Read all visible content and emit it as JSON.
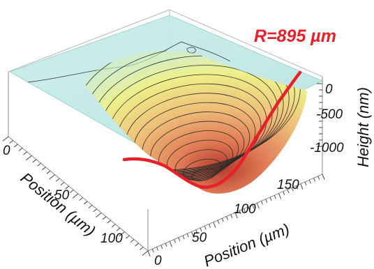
{
  "chart_data": {
    "type": "surface3d",
    "title": "",
    "annotation": "R=895 µm",
    "x_axis": {
      "label": "Position (µm)",
      "ticks": [
        0,
        50,
        100
      ]
    },
    "y_axis": {
      "label": "Position (µm)",
      "ticks": [
        0,
        50,
        100,
        150
      ]
    },
    "z_axis": {
      "label": "Height (nm)",
      "ticks": [
        0,
        -500,
        -1000
      ]
    },
    "surface": {
      "description_values": {
        "rim_height_nm": 0,
        "min_height_nm": -1150,
        "min_location_um": {
          "x": 95,
          "y": 75
        },
        "contour_interval_nm": 60
      }
    },
    "fit_profile": {
      "name": "",
      "radius_um": 895,
      "color": "#e8202a"
    },
    "colors": {
      "plane": "#bfe9e6",
      "surface_high": "#f2f27a",
      "surface_mid": "#e9b46a",
      "surface_low": "#c8503a",
      "fit_line": "#e8202a",
      "annotation": "#e8202a"
    }
  }
}
